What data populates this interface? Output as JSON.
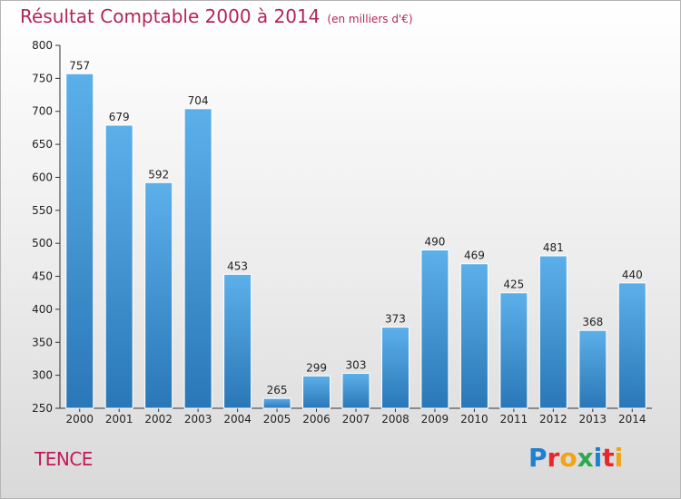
{
  "header": {
    "title": "Résultat Comptable 2000 à 2014",
    "subtitle": "(en milliers d'€)"
  },
  "footer": {
    "commune": "TENCE",
    "brand": "Proxiti"
  },
  "colors": {
    "title": "#b3245b",
    "bar_light": "#5cb0ea",
    "bar_dark": "#2a77b7",
    "logo_letters": [
      "#1f7fd0",
      "#e8262b",
      "#f2a413",
      "#2fa84f",
      "#1f7fd0",
      "#e8262b",
      "#f2a413"
    ]
  },
  "chart_data": {
    "type": "bar",
    "categories": [
      "2000",
      "2001",
      "2002",
      "2003",
      "2004",
      "2005",
      "2006",
      "2007",
      "2008",
      "2009",
      "2010",
      "2011",
      "2012",
      "2013",
      "2014"
    ],
    "values": [
      757,
      679,
      592,
      704,
      453,
      265,
      299,
      303,
      373,
      490,
      469,
      425,
      481,
      368,
      440
    ],
    "ylim": [
      250,
      800
    ],
    "yticks": [
      250,
      300,
      350,
      400,
      450,
      500,
      550,
      600,
      650,
      700,
      750,
      800
    ],
    "grid": false,
    "legend": "none"
  }
}
